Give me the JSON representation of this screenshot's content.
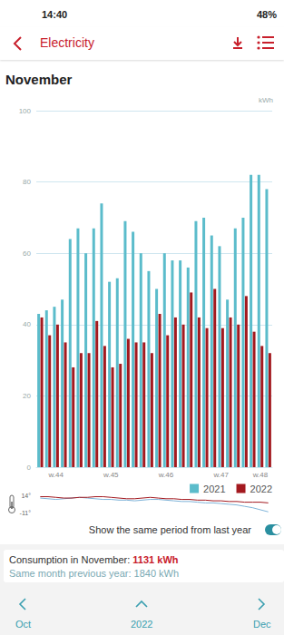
{
  "status_bar": {
    "time": "14:40",
    "battery": "48%"
  },
  "header": {
    "title": "Electricity"
  },
  "page_title": "November",
  "chart_data": [
    {
      "type": "bar",
      "ylabel": "kWh",
      "categories": [
        null,
        null,
        "w.44",
        null,
        null,
        null,
        null,
        null,
        null,
        "w.45",
        null,
        null,
        null,
        null,
        null,
        null,
        "w.46",
        null,
        null,
        null,
        null,
        null,
        null,
        "w.47",
        null,
        null,
        null,
        null,
        "w.48",
        null
      ],
      "series": [
        {
          "name": "2021",
          "color": "#5bbccb",
          "values": [
            43,
            44,
            45,
            47,
            64,
            67,
            60,
            67,
            74,
            52,
            53,
            69,
            66,
            60,
            55,
            50,
            60,
            58,
            58,
            56,
            69,
            70,
            65,
            62,
            47,
            67,
            70,
            82,
            82,
            78
          ]
        },
        {
          "name": "2022",
          "color": "#a3191f",
          "values": [
            42,
            37,
            40,
            35,
            28,
            32,
            32,
            41,
            34,
            28,
            29,
            36,
            35,
            35,
            32,
            43,
            37,
            42,
            40,
            49,
            42,
            39,
            50,
            39,
            42,
            40,
            48,
            38,
            34,
            32
          ]
        }
      ],
      "ylim": [
        0,
        100
      ],
      "yticks": [
        0,
        20,
        40,
        60,
        80,
        100
      ],
      "grid": true,
      "legend": "bottom-right"
    },
    {
      "type": "line",
      "categories": [
        null,
        null,
        null,
        null,
        null,
        null,
        null,
        null,
        null,
        null,
        null,
        null,
        null,
        null,
        null,
        null,
        null,
        null,
        null,
        null,
        null,
        null,
        null,
        null,
        null,
        null,
        null,
        null,
        null,
        null
      ],
      "series": [
        {
          "name": "2021",
          "color": "#7fb4d9",
          "values": [
            10,
            9,
            8,
            9,
            10,
            11,
            10,
            9,
            8,
            8,
            7,
            7,
            6,
            7,
            8,
            8,
            7,
            6,
            5,
            5,
            4,
            3,
            3,
            2,
            1,
            0,
            -2,
            -4,
            -7,
            -10
          ]
        },
        {
          "name": "2022",
          "color": "#a3191f",
          "values": [
            12,
            12,
            11,
            10,
            10,
            11,
            11,
            12,
            12,
            11,
            10,
            9,
            9,
            10,
            11,
            10,
            9,
            9,
            8,
            8,
            7,
            7,
            6,
            6,
            5,
            5,
            4,
            4,
            4,
            3
          ]
        }
      ],
      "ylim": [
        -11,
        14
      ],
      "yticks": [
        {
          "value": -11,
          "label": "-11°"
        },
        {
          "value": 14,
          "label": "14°"
        }
      ],
      "grid": false,
      "tick_labels": "y"
    }
  ],
  "toggle": {
    "label": "Show the same period from last year",
    "on": true
  },
  "summary": {
    "current_label": "Consumption in November:",
    "current_value": "1131 kWh",
    "previous_label": "Same month previous year:",
    "previous_value": "1840 kWh"
  },
  "nav": {
    "prev": "Oct",
    "year": "2022",
    "next": "Dec"
  }
}
